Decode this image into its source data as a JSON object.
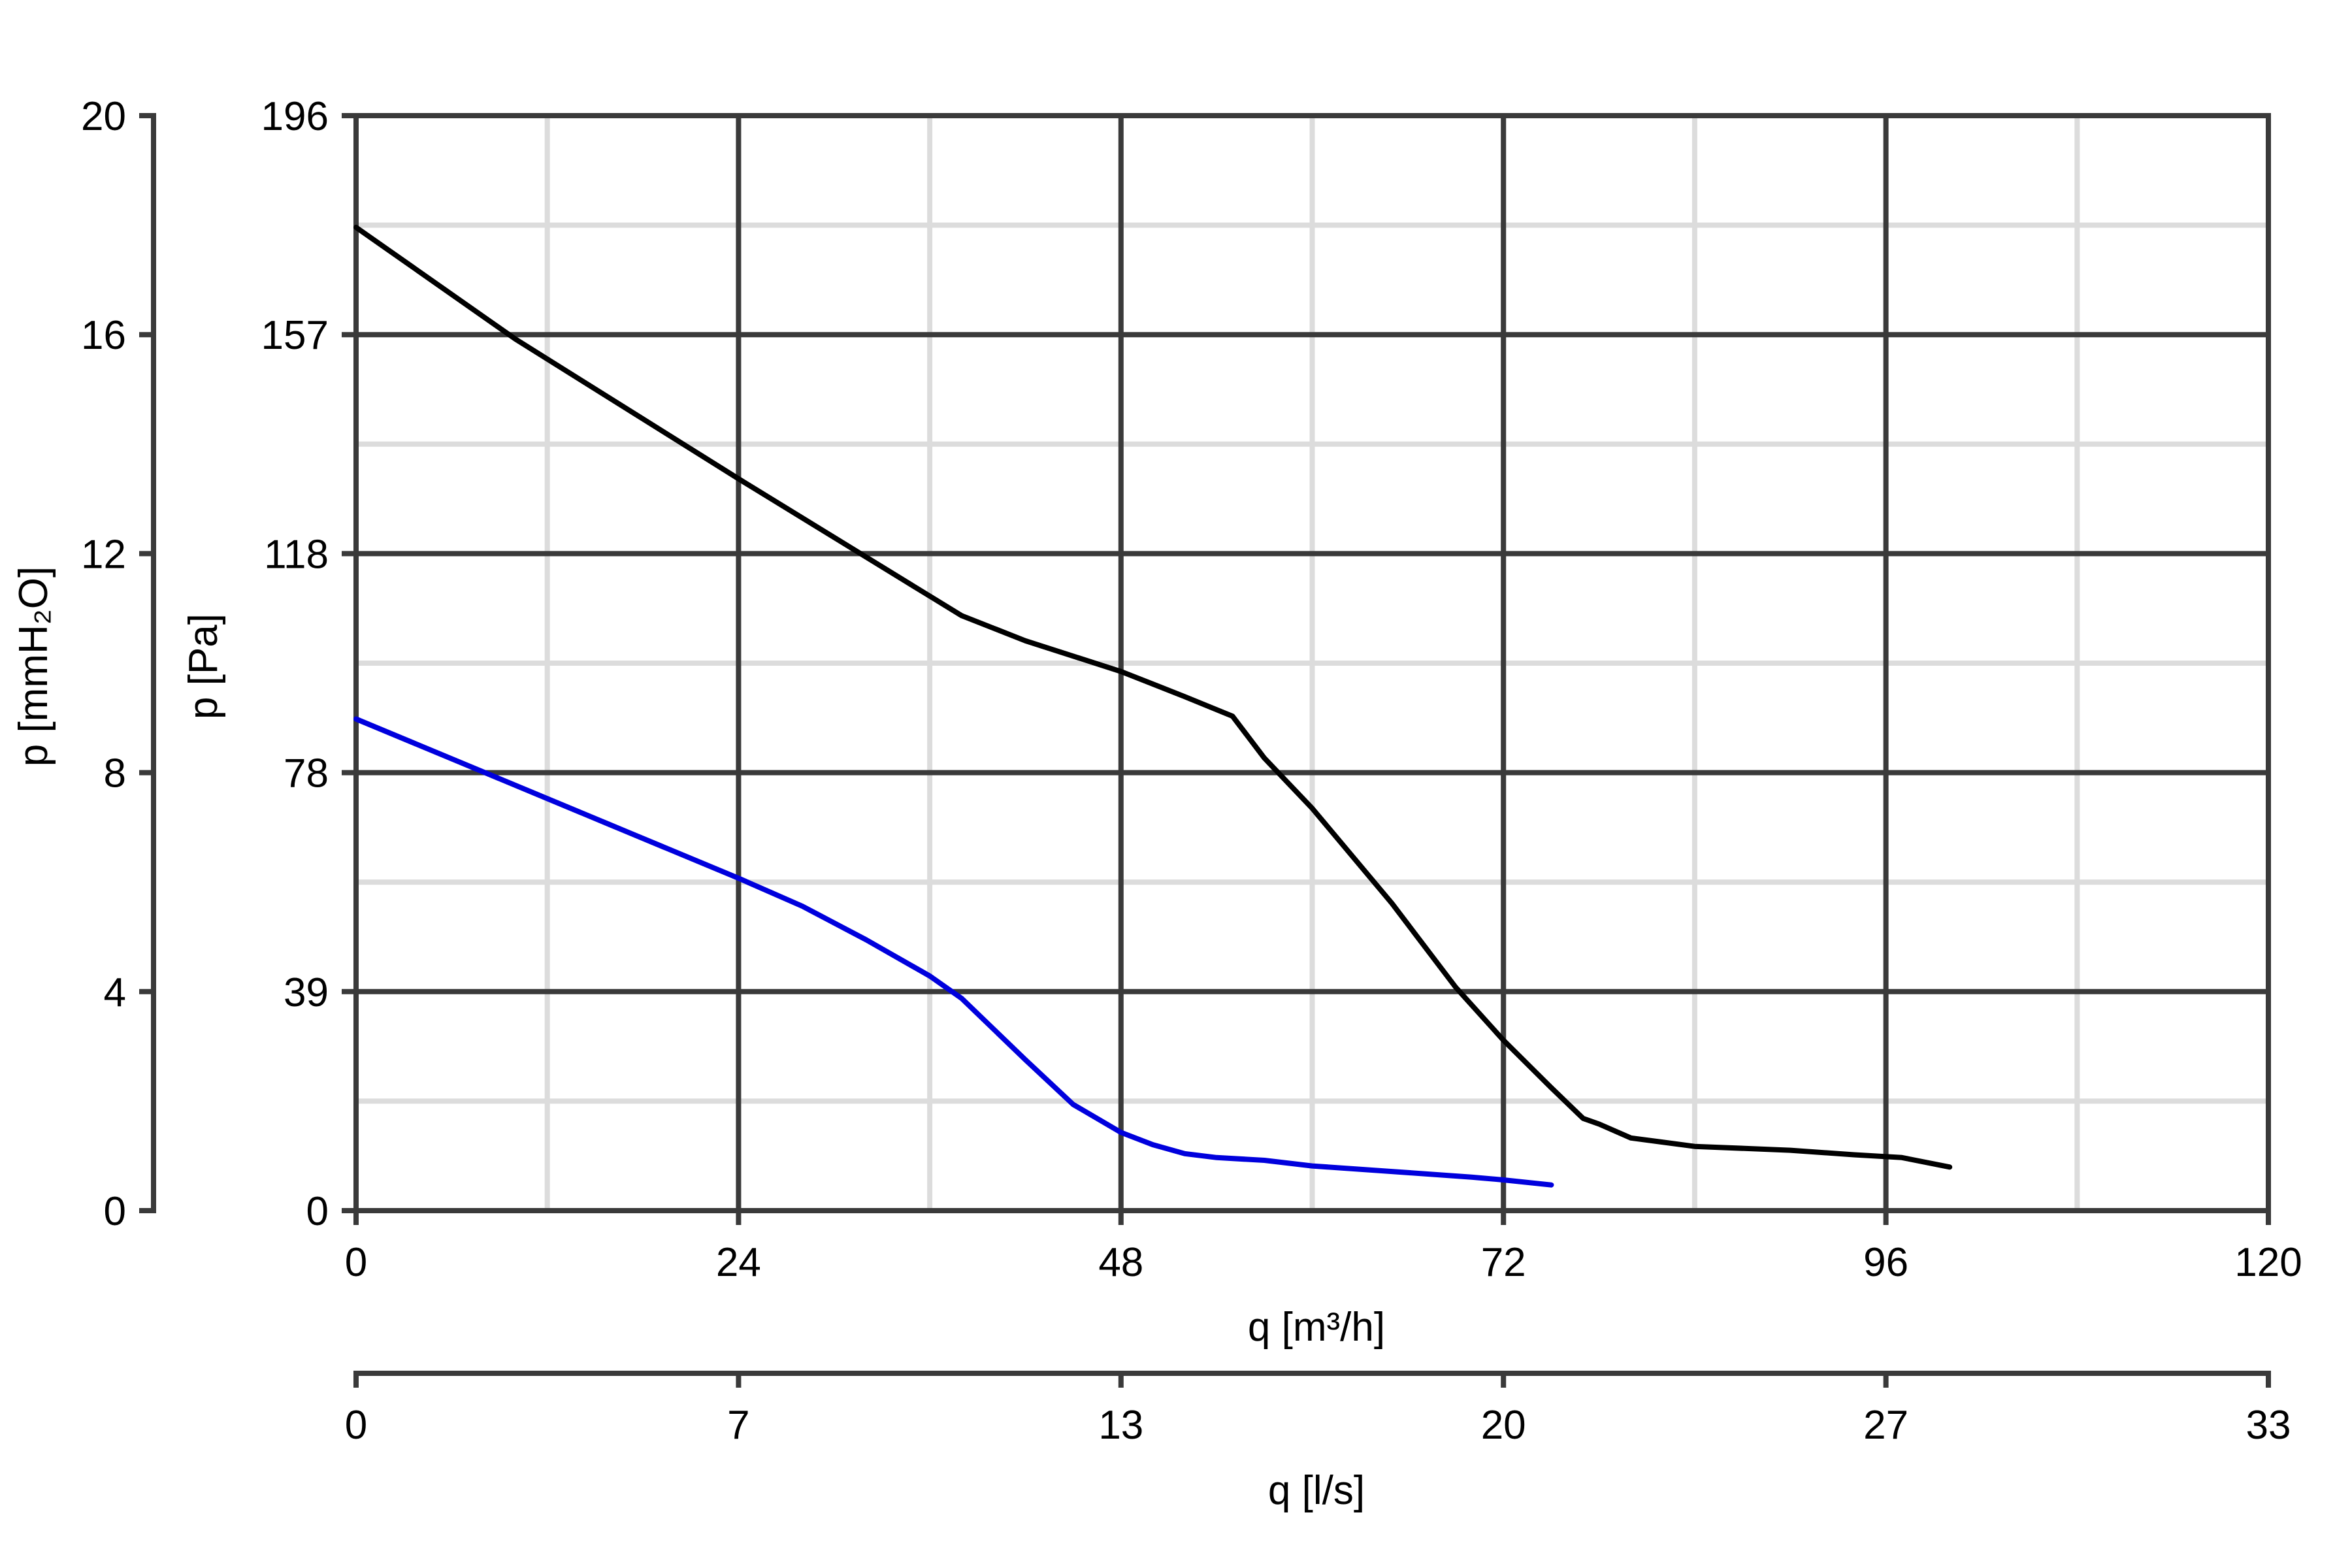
{
  "chart_data": {
    "type": "line",
    "colors": {
      "major_grid": "#3a3a3a",
      "minor_grid": "#dcdcdc",
      "axis": "#3a3a3a"
    },
    "x_axis": {
      "label": "q [m³/h]",
      "ticks": [
        "0",
        "24",
        "48",
        "72",
        "96",
        "120"
      ],
      "range": [
        0,
        120
      ]
    },
    "x2_axis": {
      "label": "q [l/s]",
      "ticks": [
        "0",
        "7",
        "13",
        "20",
        "27",
        "33"
      ]
    },
    "y_axis": {
      "label": "p [Pa]",
      "ticks": [
        "0",
        "39",
        "78",
        "118",
        "157",
        "196"
      ],
      "range": [
        0,
        196
      ]
    },
    "y2_axis": {
      "label": "p [mmH₂O]",
      "ticks": [
        "0",
        "4",
        "8",
        "12",
        "16",
        "20"
      ]
    },
    "grid": true,
    "series": [
      {
        "color": "#000000",
        "points": [
          [
            0,
            176
          ],
          [
            10,
            156
          ],
          [
            24,
            131
          ],
          [
            36,
            110
          ],
          [
            38,
            106.5
          ],
          [
            42,
            102
          ],
          [
            48,
            96.5
          ],
          [
            52,
            92
          ],
          [
            55,
            88.5
          ],
          [
            57,
            81
          ],
          [
            60,
            72
          ],
          [
            65,
            55
          ],
          [
            69,
            40
          ],
          [
            72,
            30.5
          ],
          [
            75,
            22
          ],
          [
            77,
            16.5
          ],
          [
            78,
            15.5
          ],
          [
            80,
            13
          ],
          [
            84,
            11.5
          ],
          [
            90,
            10.8
          ],
          [
            94,
            10
          ],
          [
            97,
            9.5
          ],
          [
            100,
            7.8
          ]
        ]
      },
      {
        "color": "#0000dd",
        "points": [
          [
            0,
            88
          ],
          [
            8,
            78.5
          ],
          [
            16,
            69
          ],
          [
            24,
            59.5
          ],
          [
            28,
            54.5
          ],
          [
            32,
            48.5
          ],
          [
            36,
            42
          ],
          [
            38,
            38
          ],
          [
            42,
            27
          ],
          [
            45,
            19
          ],
          [
            48,
            14
          ],
          [
            50,
            11.8
          ],
          [
            52,
            10.2
          ],
          [
            54,
            9.5
          ],
          [
            57,
            9
          ],
          [
            60,
            8
          ],
          [
            65,
            7
          ],
          [
            70,
            6
          ],
          [
            72,
            5.5
          ],
          [
            75,
            4.6
          ]
        ]
      }
    ]
  }
}
